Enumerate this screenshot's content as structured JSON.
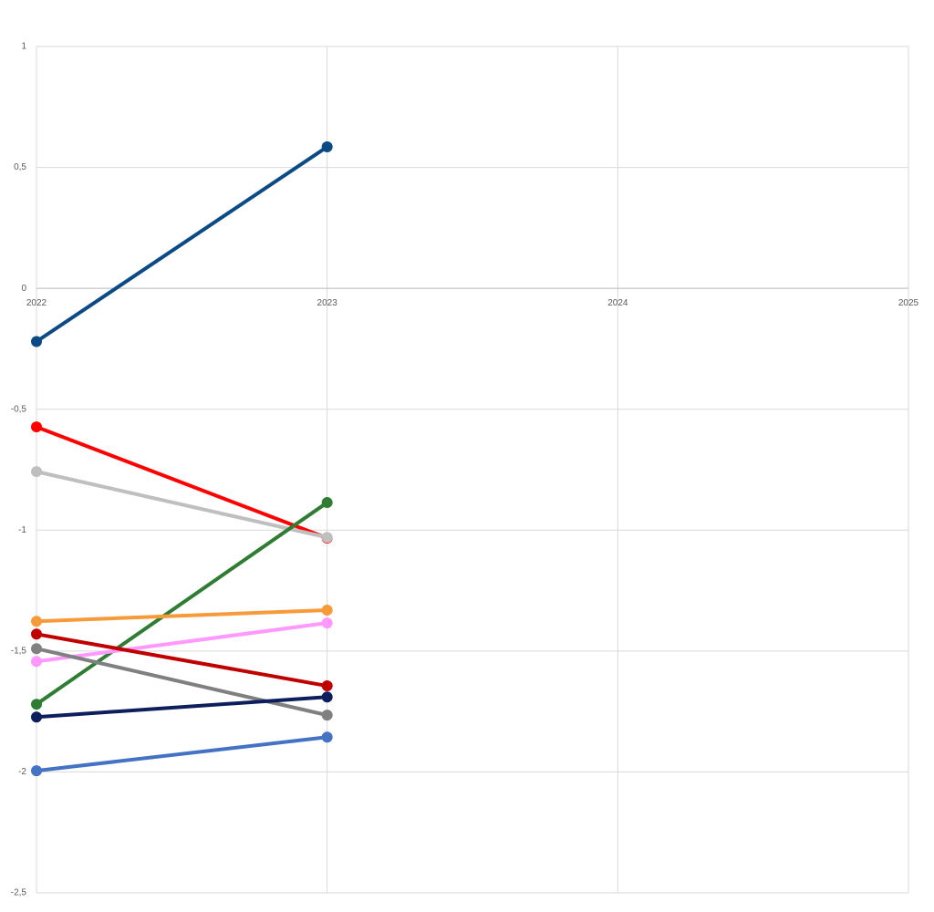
{
  "chart_data": {
    "type": "line",
    "x": [
      2022,
      2023
    ],
    "xlim": [
      2022,
      2025
    ],
    "xticks": [
      2022,
      2023,
      2024,
      2025
    ],
    "ylim": [
      -2.5,
      1
    ],
    "yticks": [
      {
        "value": -2.5,
        "label": "-2,5"
      },
      -2,
      {
        "value": -1.5,
        "label": "-1,5"
      },
      -1,
      {
        "value": -0.5,
        "label": "-0,5"
      },
      0,
      {
        "value": 0.5,
        "label": "0,5"
      },
      1
    ],
    "grid": true,
    "series": [
      {
        "color": "#0a4a85",
        "values": [
          -0.22,
          0.585
        ]
      },
      {
        "color": "#ff0000",
        "values": [
          -0.573,
          -1.033
        ]
      },
      {
        "color": "#bfbfbf",
        "values": [
          -0.758,
          -1.03
        ]
      },
      {
        "color": "#2e7d32",
        "values": [
          -1.72,
          -0.886
        ]
      },
      {
        "color": "#f79a3a",
        "values": [
          -1.377,
          -1.331
        ]
      },
      {
        "color": "#ff99ff",
        "values": [
          -1.543,
          -1.384
        ]
      },
      {
        "color": "#c00000",
        "values": [
          -1.43,
          -1.644
        ]
      },
      {
        "color": "#808080",
        "values": [
          -1.49,
          -1.765
        ]
      },
      {
        "color": "#0c1f5c",
        "values": [
          -1.773,
          -1.69
        ]
      },
      {
        "color": "#4472c4",
        "values": [
          -1.995,
          -1.856
        ]
      }
    ]
  }
}
